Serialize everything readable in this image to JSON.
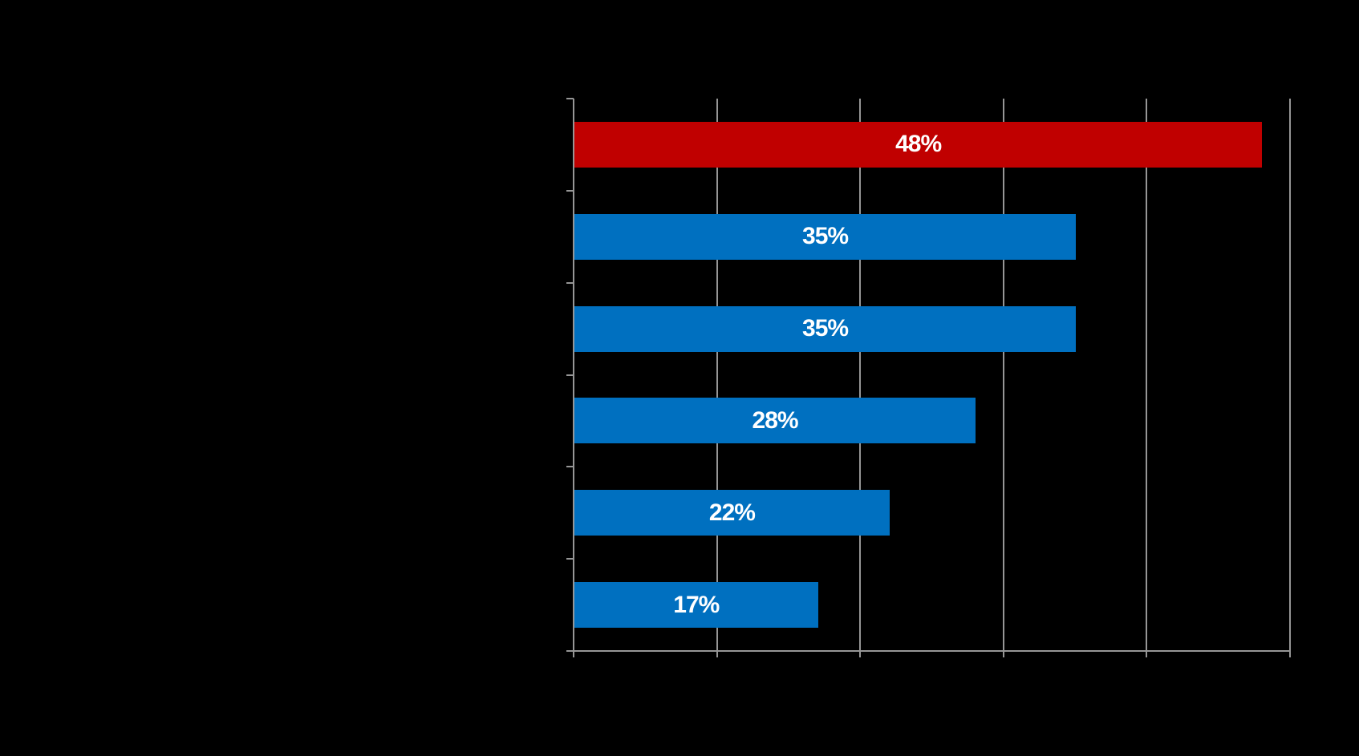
{
  "canvas": {
    "background_color": "#000000",
    "note": "Only the chart plot is visible; any title, category labels and x-axis tick labels are not rendered (black/transparent on black background)."
  },
  "chart_data": {
    "type": "bar",
    "orientation": "horizontal",
    "title": "",
    "xlabel": "",
    "ylabel": "",
    "values": [
      48,
      35,
      35,
      28,
      22,
      17
    ],
    "data_labels": [
      "48%",
      "35%",
      "35%",
      "28%",
      "22%",
      "17%"
    ],
    "highlight_index": 0,
    "xlim": [
      0,
      50
    ],
    "x_gridline_step": 10,
    "grid": true,
    "legend": false,
    "axis_tick_marks": "outside, at every category boundary (y-axis) and every 10% (x-axis)",
    "colors": {
      "highlight_bar": "#c00000",
      "default_bar": "#0070c0",
      "data_label_text": "#ffffff",
      "gridline": "#969696",
      "axis_line": "#969696",
      "background": "#000000"
    }
  }
}
